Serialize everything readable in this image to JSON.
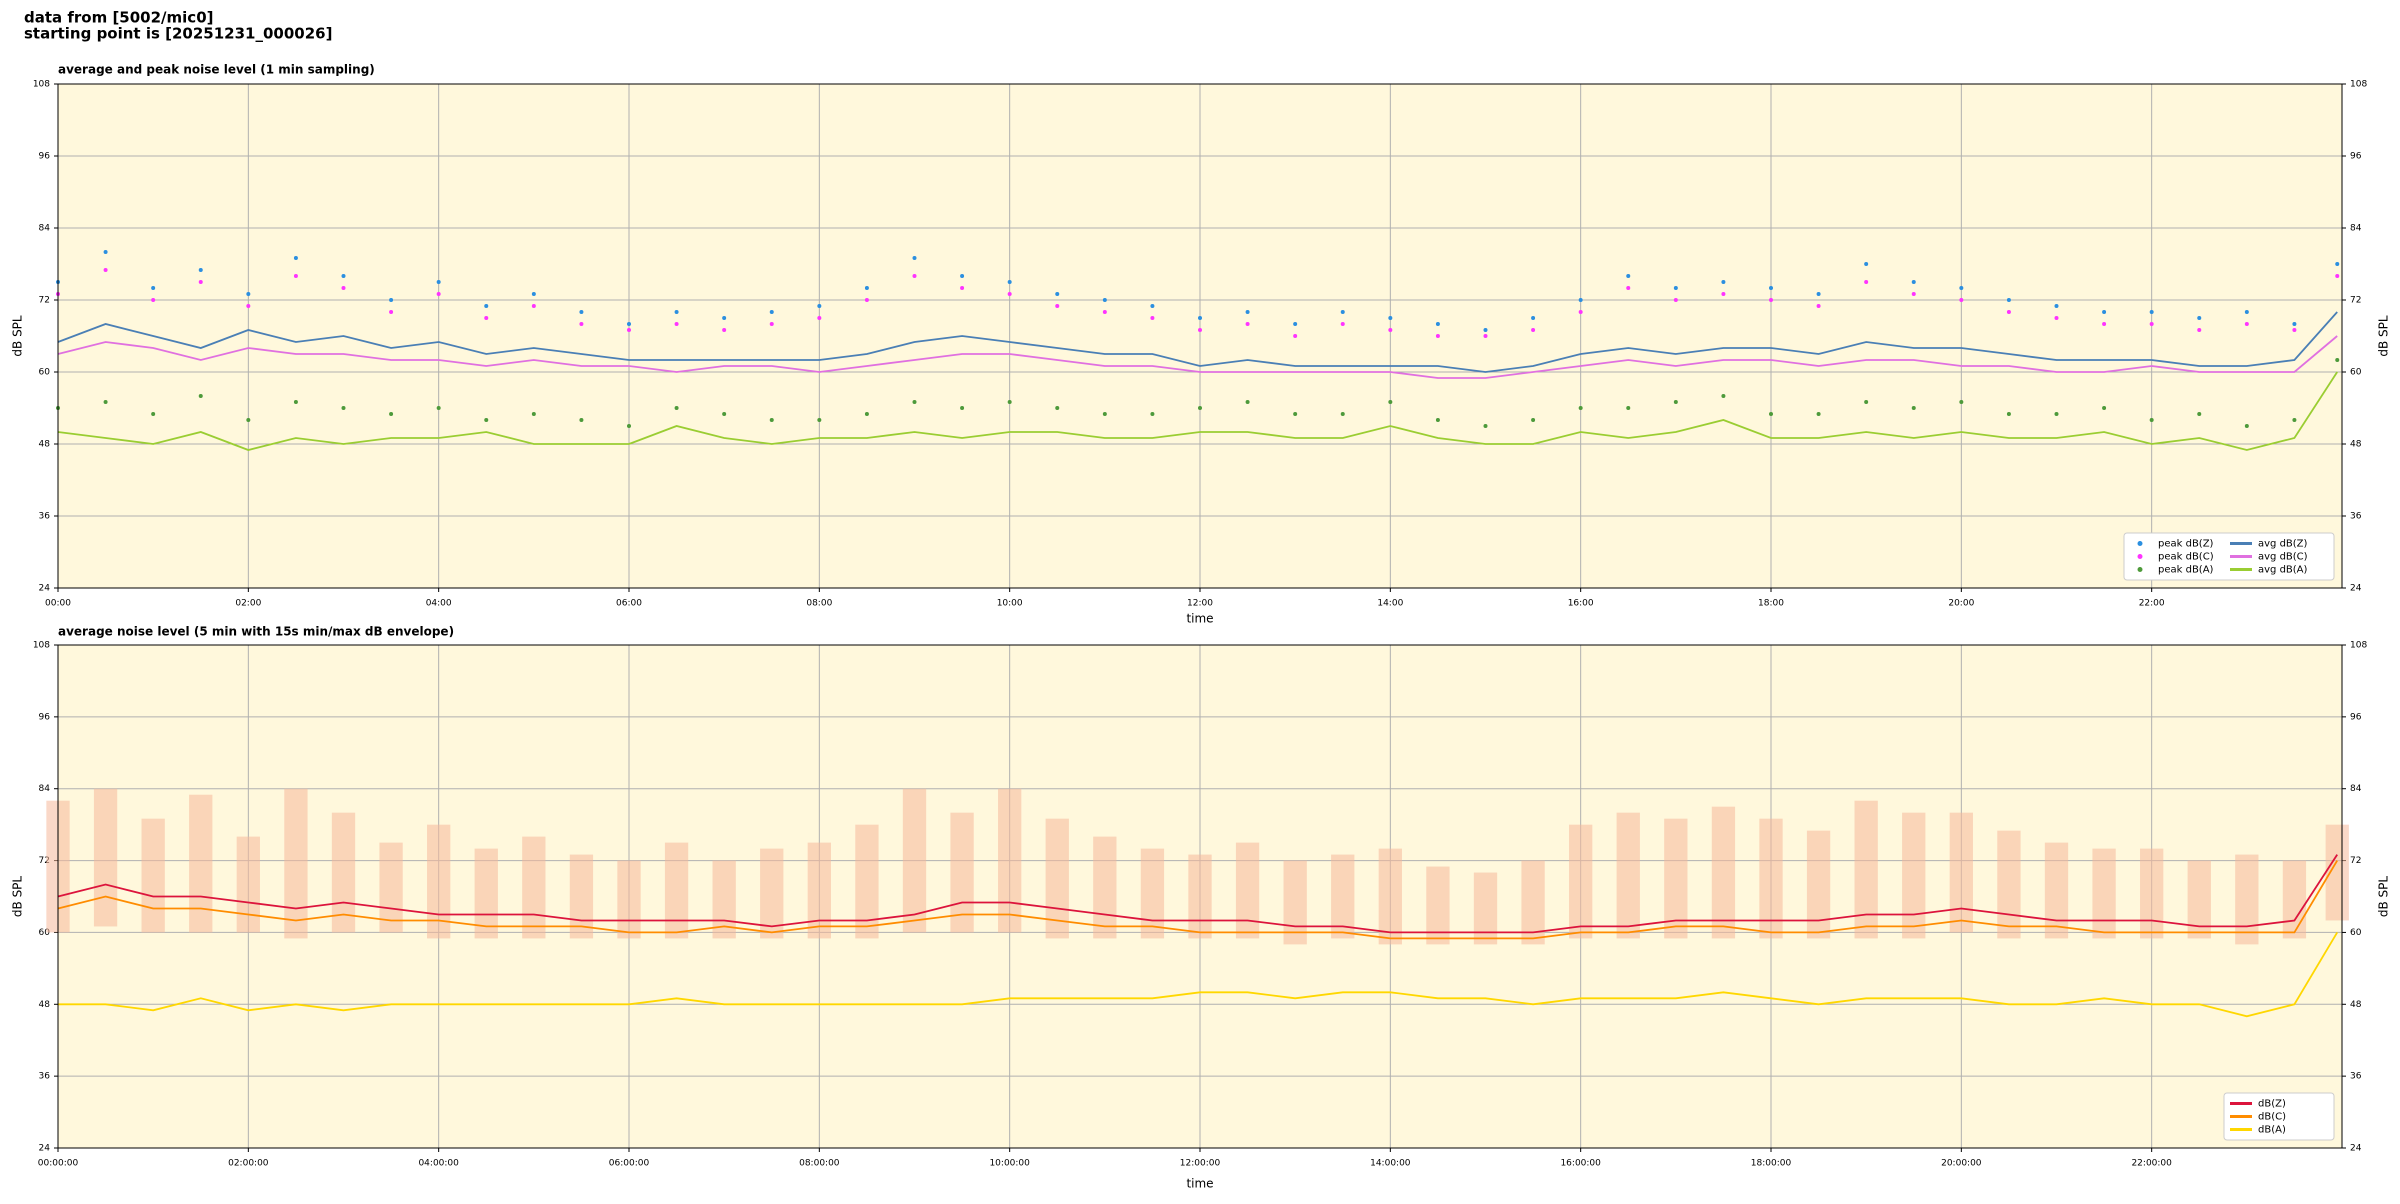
{
  "header": {
    "lines": [
      "data from [5002/mic0]",
      "starting point is [20251231_000026]"
    ]
  },
  "chart_data": [
    {
      "type": "line",
      "title": "average and peak noise level (1 min sampling)",
      "xlabel": "time",
      "ylabel": "dB SPL",
      "y2label": "dB SPL",
      "background": "#fff8dc",
      "grid": true,
      "legend": "lower right",
      "legend_ncol": 2,
      "xlim": [
        0,
        24
      ],
      "ylim": [
        24,
        108
      ],
      "xticks": [
        {
          "value": 0,
          "label": "00:00"
        },
        {
          "value": 2,
          "label": "02:00"
        },
        {
          "value": 4,
          "label": "04:00"
        },
        {
          "value": 6,
          "label": "06:00"
        },
        {
          "value": 8,
          "label": "08:00"
        },
        {
          "value": 10,
          "label": "10:00"
        },
        {
          "value": 12,
          "label": "12:00"
        },
        {
          "value": 14,
          "label": "14:00"
        },
        {
          "value": 16,
          "label": "16:00"
        },
        {
          "value": 18,
          "label": "18:00"
        },
        {
          "value": 20,
          "label": "20:00"
        },
        {
          "value": 22,
          "label": "22:00"
        }
      ],
      "yticks": [
        24,
        36,
        48,
        60,
        72,
        84,
        96,
        108
      ],
      "x": [
        0,
        0.5,
        1,
        1.5,
        2,
        2.5,
        3,
        3.5,
        4,
        4.5,
        5,
        5.5,
        6,
        6.5,
        7,
        7.5,
        8,
        8.5,
        9,
        9.5,
        10,
        10.5,
        11,
        11.5,
        12,
        12.5,
        13,
        13.5,
        14,
        14.5,
        15,
        15.5,
        16,
        16.5,
        17,
        17.5,
        18,
        18.5,
        19,
        19.5,
        20,
        20.5,
        21,
        21.5,
        22,
        22.5,
        23,
        23.5,
        23.95
      ],
      "series": [
        {
          "name": "peak dB(Z)",
          "style": "scatter",
          "color": "#2b8fe0",
          "values": [
            75,
            80,
            74,
            77,
            73,
            79,
            76,
            72,
            75,
            71,
            73,
            70,
            68,
            70,
            69,
            70,
            71,
            74,
            79,
            76,
            75,
            73,
            72,
            71,
            69,
            70,
            68,
            70,
            69,
            68,
            67,
            69,
            72,
            76,
            74,
            75,
            74,
            73,
            78,
            75,
            74,
            72,
            71,
            70,
            70,
            69,
            70,
            68,
            78
          ]
        },
        {
          "name": "peak dB(C)",
          "style": "scatter",
          "color": "#ff33ff",
          "values": [
            73,
            77,
            72,
            75,
            71,
            76,
            74,
            70,
            73,
            69,
            71,
            68,
            67,
            68,
            67,
            68,
            69,
            72,
            76,
            74,
            73,
            71,
            70,
            69,
            67,
            68,
            66,
            68,
            67,
            66,
            66,
            67,
            70,
            74,
            72,
            73,
            72,
            71,
            75,
            73,
            72,
            70,
            69,
            68,
            68,
            67,
            68,
            67,
            76
          ]
        },
        {
          "name": "peak dB(A)",
          "style": "scatter",
          "color": "#4d9a3a",
          "values": [
            54,
            55,
            53,
            56,
            52,
            55,
            54,
            53,
            54,
            52,
            53,
            52,
            51,
            54,
            53,
            52,
            52,
            53,
            55,
            54,
            55,
            54,
            53,
            53,
            54,
            55,
            53,
            53,
            55,
            52,
            51,
            52,
            54,
            54,
            55,
            56,
            53,
            53,
            55,
            54,
            55,
            53,
            53,
            54,
            52,
            53,
            51,
            52,
            62
          ]
        },
        {
          "name": "avg dB(Z)",
          "style": "line",
          "color": "#4a7fb5",
          "values": [
            65,
            68,
            66,
            64,
            67,
            65,
            66,
            64,
            65,
            63,
            64,
            63,
            62,
            62,
            62,
            62,
            62,
            63,
            65,
            66,
            65,
            64,
            63,
            63,
            61,
            62,
            61,
            61,
            61,
            61,
            60,
            61,
            63,
            64,
            63,
            64,
            64,
            63,
            65,
            64,
            64,
            63,
            62,
            62,
            62,
            61,
            61,
            62,
            70
          ]
        },
        {
          "name": "avg dB(C)",
          "style": "line",
          "color": "#e070e0",
          "values": [
            63,
            65,
            64,
            62,
            64,
            63,
            63,
            62,
            62,
            61,
            62,
            61,
            61,
            60,
            61,
            61,
            60,
            61,
            62,
            63,
            63,
            62,
            61,
            61,
            60,
            60,
            60,
            60,
            60,
            59,
            59,
            60,
            61,
            62,
            61,
            62,
            62,
            61,
            62,
            62,
            61,
            61,
            60,
            60,
            61,
            60,
            60,
            60,
            66
          ]
        },
        {
          "name": "avg dB(A)",
          "style": "line",
          "color": "#9acd32",
          "values": [
            50,
            49,
            48,
            50,
            47,
            49,
            48,
            49,
            49,
            50,
            48,
            48,
            48,
            51,
            49,
            48,
            49,
            49,
            50,
            49,
            50,
            50,
            49,
            49,
            50,
            50,
            49,
            49,
            51,
            49,
            48,
            48,
            50,
            49,
            50,
            52,
            49,
            49,
            50,
            49,
            50,
            49,
            49,
            50,
            48,
            49,
            47,
            49,
            60
          ]
        }
      ]
    },
    {
      "type": "line",
      "title": "average noise level (5 min with 15s min/max dB envelope)",
      "xlabel": "time",
      "ylabel": "dB SPL",
      "y2label": "dB SPL",
      "background": "#fff8dc",
      "grid": true,
      "legend": "lower right",
      "legend_ncol": 1,
      "xlim": [
        0,
        24
      ],
      "ylim": [
        24,
        108
      ],
      "xticks": [
        {
          "value": 0,
          "label": "00:00:00"
        },
        {
          "value": 2,
          "label": "02:00:00"
        },
        {
          "value": 4,
          "label": "04:00:00"
        },
        {
          "value": 6,
          "label": "06:00:00"
        },
        {
          "value": 8,
          "label": "08:00:00"
        },
        {
          "value": 10,
          "label": "10:00:00"
        },
        {
          "value": 12,
          "label": "12:00:00"
        },
        {
          "value": 14,
          "label": "14:00:00"
        },
        {
          "value": 16,
          "label": "16:00:00"
        },
        {
          "value": 18,
          "label": "18:00:00"
        },
        {
          "value": 20,
          "label": "20:00:00"
        },
        {
          "value": 22,
          "label": "22:00:00"
        }
      ],
      "yticks": [
        24,
        36,
        48,
        60,
        72,
        84,
        96,
        108
      ],
      "x": [
        0,
        0.5,
        1,
        1.5,
        2,
        2.5,
        3,
        3.5,
        4,
        4.5,
        5,
        5.5,
        6,
        6.5,
        7,
        7.5,
        8,
        8.5,
        9,
        9.5,
        10,
        10.5,
        11,
        11.5,
        12,
        12.5,
        13,
        13.5,
        14,
        14.5,
        15,
        15.5,
        16,
        16.5,
        17,
        17.5,
        18,
        18.5,
        19,
        19.5,
        20,
        20.5,
        21,
        21.5,
        22,
        22.5,
        23,
        23.5,
        23.95
      ],
      "envelope": {
        "color": "#f5b89a",
        "min": [
          60,
          61,
          60,
          60,
          60,
          59,
          60,
          60,
          59,
          59,
          59,
          59,
          59,
          59,
          59,
          59,
          59,
          59,
          60,
          60,
          60,
          59,
          59,
          59,
          59,
          59,
          58,
          59,
          58,
          58,
          58,
          58,
          59,
          59,
          59,
          59,
          59,
          59,
          59,
          59,
          60,
          59,
          59,
          59,
          59,
          59,
          58,
          59,
          62
        ],
        "max": [
          82,
          84,
          79,
          83,
          76,
          84,
          80,
          75,
          78,
          74,
          76,
          73,
          72,
          75,
          72,
          74,
          75,
          78,
          84,
          80,
          84,
          79,
          76,
          74,
          73,
          75,
          72,
          73,
          74,
          71,
          70,
          72,
          78,
          80,
          79,
          81,
          79,
          77,
          82,
          80,
          80,
          77,
          75,
          74,
          74,
          72,
          73,
          72,
          78
        ]
      },
      "series": [
        {
          "name": "dB(Z)",
          "style": "line",
          "color": "#dc143c",
          "values": [
            66,
            68,
            66,
            66,
            65,
            64,
            65,
            64,
            63,
            63,
            63,
            62,
            62,
            62,
            62,
            61,
            62,
            62,
            63,
            65,
            65,
            64,
            63,
            62,
            62,
            62,
            61,
            61,
            60,
            60,
            60,
            60,
            61,
            61,
            62,
            62,
            62,
            62,
            63,
            63,
            64,
            63,
            62,
            62,
            62,
            61,
            61,
            62,
            73
          ]
        },
        {
          "name": "dB(C)",
          "style": "line",
          "color": "#ff8c00",
          "values": [
            64,
            66,
            64,
            64,
            63,
            62,
            63,
            62,
            62,
            61,
            61,
            61,
            60,
            60,
            61,
            60,
            61,
            61,
            62,
            63,
            63,
            62,
            61,
            61,
            60,
            60,
            60,
            60,
            59,
            59,
            59,
            59,
            60,
            60,
            61,
            61,
            60,
            60,
            61,
            61,
            62,
            61,
            61,
            60,
            60,
            60,
            60,
            60,
            72
          ]
        },
        {
          "name": "dB(A)",
          "style": "line",
          "color": "#ffd700",
          "values": [
            48,
            48,
            47,
            49,
            47,
            48,
            47,
            48,
            48,
            48,
            48,
            48,
            48,
            49,
            48,
            48,
            48,
            48,
            48,
            48,
            49,
            49,
            49,
            49,
            50,
            50,
            49,
            50,
            50,
            49,
            49,
            48,
            49,
            49,
            49,
            50,
            49,
            48,
            49,
            49,
            49,
            48,
            48,
            49,
            48,
            48,
            46,
            48,
            60
          ]
        }
      ]
    }
  ]
}
